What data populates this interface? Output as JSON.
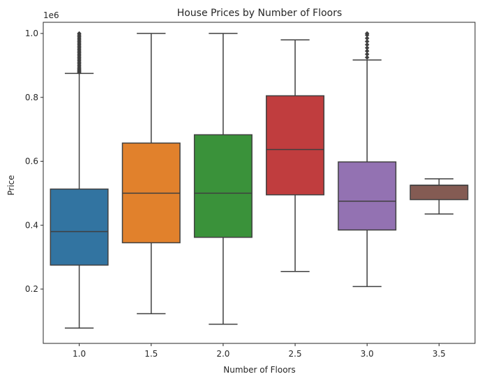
{
  "chart_data": {
    "type": "box",
    "title": "House Prices by Number of Floors",
    "xlabel": "Number of Floors",
    "ylabel": "Price",
    "y_offset_label": "1e6",
    "ylim": [
      0.03,
      1.035
    ],
    "yticks": [
      0.2,
      0.4,
      0.6,
      0.8,
      1.0
    ],
    "ytick_labels": [
      "0.2",
      "0.4",
      "0.6",
      "0.8",
      "1.0"
    ],
    "grid": false,
    "categories": [
      "1.0",
      "1.5",
      "2.0",
      "2.5",
      "3.0",
      "3.5"
    ],
    "colors": [
      "#3274a1",
      "#e1812c",
      "#3a923a",
      "#c03d3e",
      "#9372b2",
      "#845b53"
    ],
    "line_color": "#3f3f3f",
    "boxes": [
      {
        "category": "1.0",
        "whisker_low": 0.078,
        "q1": 0.275,
        "median": 0.38,
        "q3": 0.513,
        "whisker_high": 0.875,
        "fliers": [
          0.878,
          0.882,
          0.886,
          0.89,
          0.895,
          0.9,
          0.905,
          0.91,
          0.915,
          0.92,
          0.925,
          0.93,
          0.935,
          0.94,
          0.945,
          0.95,
          0.955,
          0.96,
          0.965,
          0.97,
          0.975,
          0.98,
          0.985,
          0.99,
          0.995,
          1.0
        ]
      },
      {
        "category": "1.5",
        "whisker_low": 0.123,
        "q1": 0.345,
        "median": 0.5,
        "q3": 0.657,
        "whisker_high": 1.0,
        "fliers": []
      },
      {
        "category": "2.0",
        "whisker_low": 0.09,
        "q1": 0.362,
        "median": 0.5,
        "q3": 0.683,
        "whisker_high": 1.0,
        "fliers": []
      },
      {
        "category": "2.5",
        "whisker_low": 0.255,
        "q1": 0.495,
        "median": 0.637,
        "q3": 0.805,
        "whisker_high": 0.98,
        "fliers": []
      },
      {
        "category": "3.0",
        "whisker_low": 0.208,
        "q1": 0.385,
        "median": 0.475,
        "q3": 0.598,
        "whisker_high": 0.917,
        "fliers": [
          0.925,
          0.935,
          0.945,
          0.955,
          0.965,
          0.975,
          0.985,
          0.995,
          1.0
        ]
      },
      {
        "category": "3.5",
        "whisker_low": 0.435,
        "q1": 0.48,
        "median": 0.525,
        "q3": 0.525,
        "whisker_high": 0.545,
        "fliers": []
      }
    ]
  }
}
